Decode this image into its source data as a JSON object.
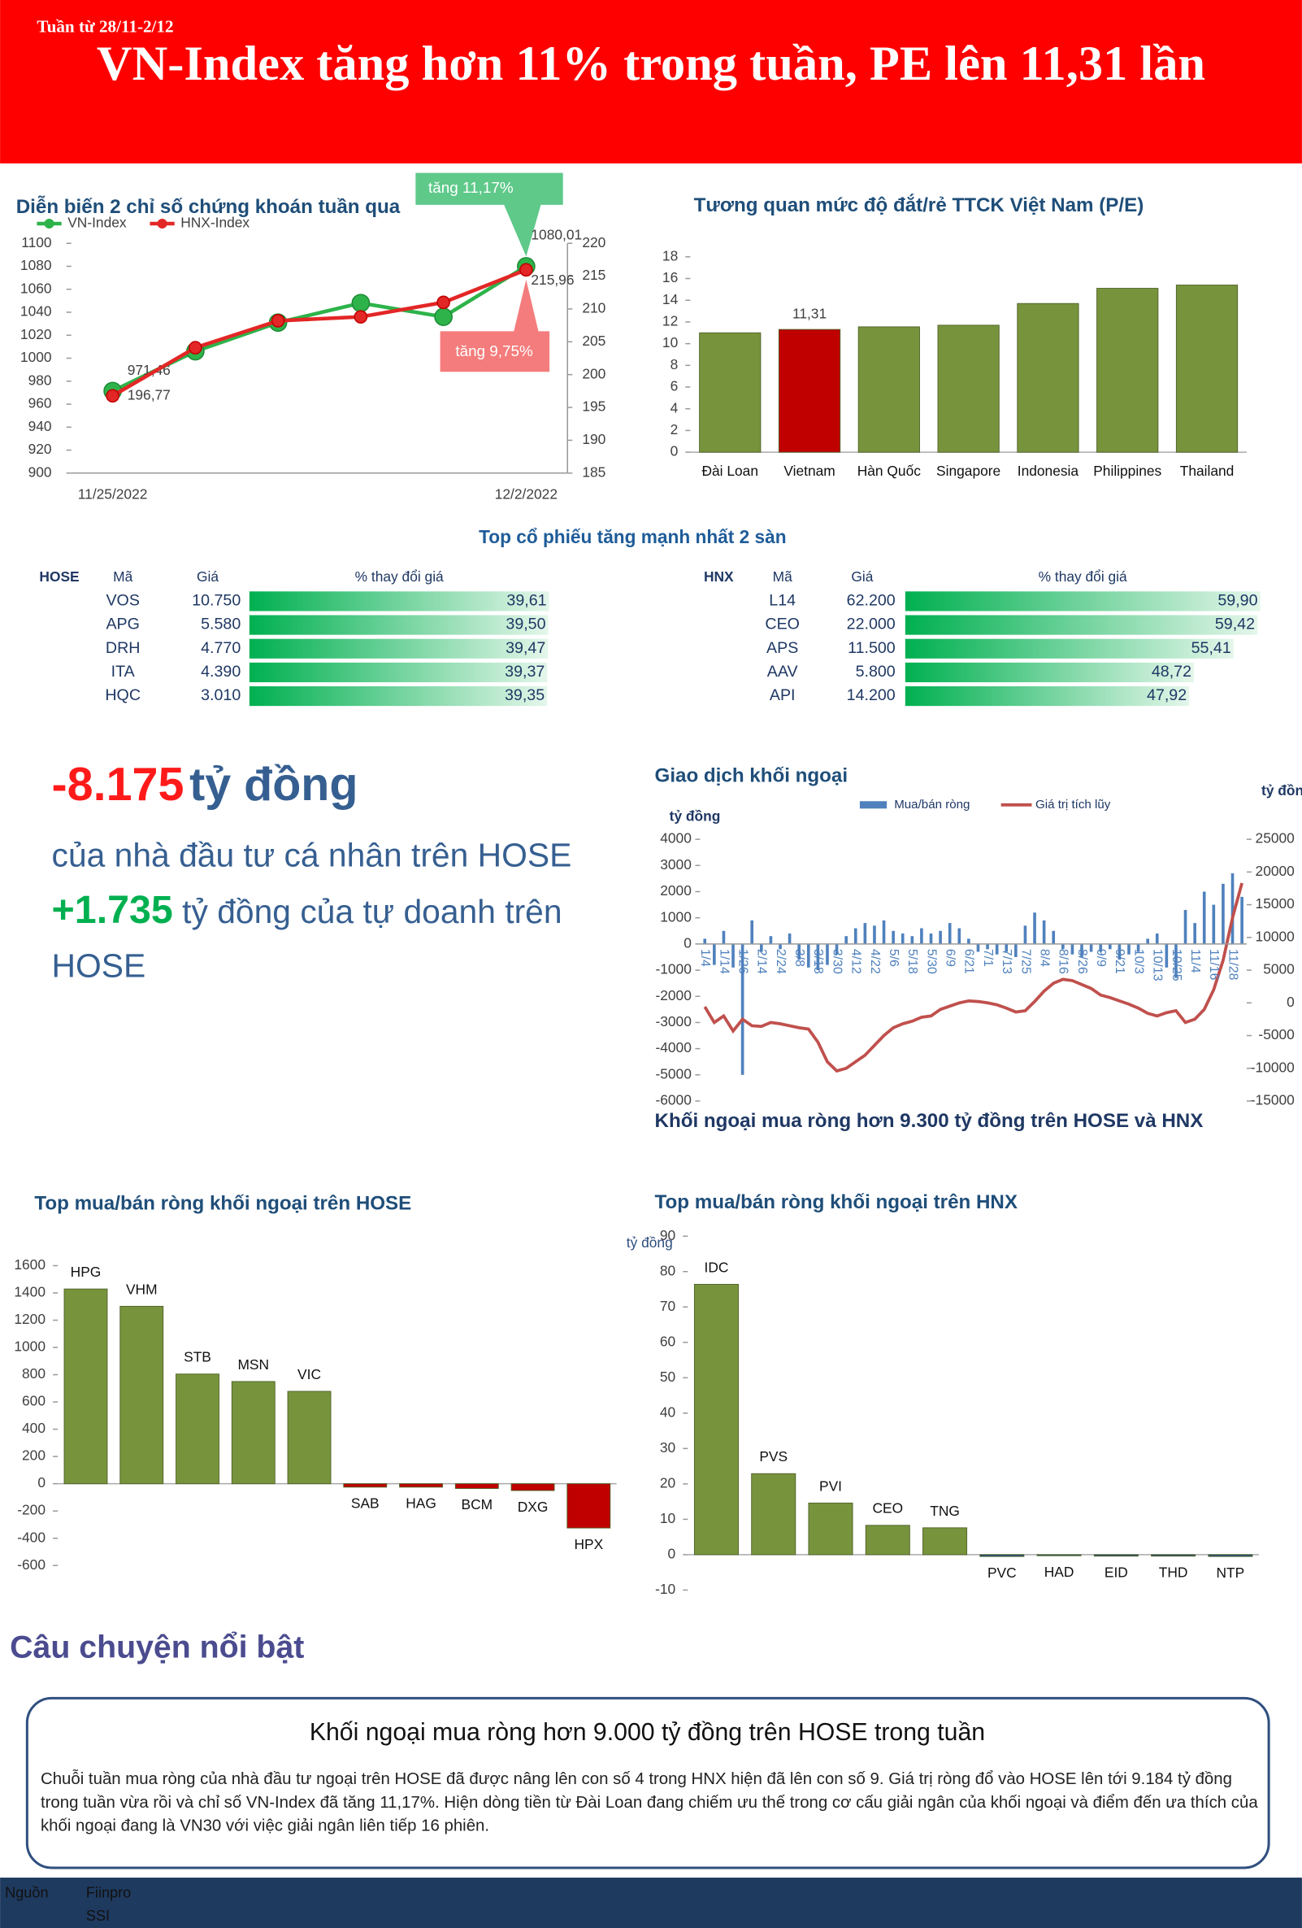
{
  "header": {
    "week": "Tuần từ 28/11-2/12",
    "title": "VN-Index tăng hơn 11% trong tuần, PE lên 11,31 lần"
  },
  "top_gainers_title": "Top cổ phiếu tăng mạnh nhất 2 sàn",
  "chart_data": [
    {
      "type": "line",
      "title": "Diễn biến 2 chỉ số chứng khoán tuần qua",
      "categories": [
        "11/25/2022",
        null,
        null,
        null,
        null,
        "12/2/2022"
      ],
      "series": [
        {
          "name": "VN-Index",
          "color": "#2db34a",
          "values": [
            971.46,
            1006,
            1031,
            1048,
            1036,
            1080.01
          ],
          "value_labels": [
            "971,46",
            null,
            null,
            null,
            null,
            "1080,01"
          ]
        },
        {
          "name": "HNX-Index",
          "color": "#e32626",
          "axis": "y2",
          "values": [
            196.77,
            204.1,
            208.2,
            208.8,
            211,
            215.96
          ],
          "value_labels": [
            "196,77",
            null,
            null,
            null,
            null,
            "215,96"
          ]
        }
      ],
      "ylim": [
        900,
        1100
      ],
      "yticks": [
        900,
        920,
        940,
        960,
        980,
        1000,
        1020,
        1040,
        1060,
        1080,
        1100
      ],
      "y2lim": [
        185,
        220
      ],
      "y2ticks": [
        185,
        190,
        195,
        200,
        205,
        210,
        215,
        220
      ],
      "annotations": [
        {
          "text": "tăng 11,17%",
          "color": "#5fc98a"
        },
        {
          "text": "tăng 9,75%",
          "color": "#f47c7c"
        }
      ]
    },
    {
      "type": "bar",
      "title": "Tương quan mức độ đắt/rẻ TTCK Việt Nam (P/E)",
      "categories": [
        "Đài Loan",
        "Vietnam",
        "Hàn Quốc",
        "Singapore",
        "Indonesia",
        "Philippines",
        "Thailand"
      ],
      "values": [
        11,
        11.31,
        11.55,
        11.7,
        13.7,
        15.1,
        15.4
      ],
      "value_labels": [
        null,
        "11,31",
        null,
        null,
        null,
        null,
        null
      ],
      "colors": [
        "#77933c",
        "#c00000",
        "#77933c",
        "#77933c",
        "#77933c",
        "#77933c",
        "#77933c"
      ],
      "ylim": [
        0,
        18
      ],
      "yticks": [
        0,
        2,
        4,
        6,
        8,
        10,
        12,
        14,
        16,
        18
      ]
    },
    {
      "type": "table-bar",
      "exchange": "HOSE",
      "headers": [
        "Mã",
        "Giá",
        "% thay đổi giá"
      ],
      "categories": [
        "VOS",
        "APG",
        "DRH",
        "ITA",
        "HQC"
      ],
      "prices": [
        "10.750",
        "5.580",
        "4.770",
        "4.390",
        "3.010"
      ],
      "values": [
        39.61,
        39.5,
        39.47,
        39.37,
        39.35
      ],
      "value_labels": [
        "39,61",
        "39,50",
        "39,47",
        "39,37",
        "39,35"
      ]
    },
    {
      "type": "table-bar",
      "exchange": "HNX",
      "headers": [
        "Mã",
        "Giá",
        "% thay đổi giá"
      ],
      "categories": [
        "L14",
        "CEO",
        "APS",
        "AAV",
        "API"
      ],
      "prices": [
        "62.200",
        "22.000",
        "11.500",
        "5.800",
        "14.200"
      ],
      "values": [
        59.9,
        59.42,
        55.41,
        48.72,
        47.92
      ],
      "value_labels": [
        "59,90",
        "59,42",
        "55,41",
        "48,72",
        "47,92"
      ]
    },
    {
      "type": "combo",
      "title": "Giao dịch khối ngoại",
      "caption": "Khối ngoại mua ròng hơn 9.300 tỷ đồng trên HOSE và HNX",
      "y_label": "tỷ đồng",
      "y2_label": "tỷ đồng",
      "categories": [
        "1/4",
        null,
        "1/14",
        null,
        "1/26",
        null,
        "2/14",
        null,
        "2/24",
        null,
        "3/8",
        null,
        "3/18",
        null,
        "3/30",
        null,
        "4/12",
        null,
        "4/22",
        null,
        "5/6",
        null,
        "5/18",
        null,
        "5/30",
        null,
        "6/9",
        null,
        "6/21",
        null,
        "7/1",
        null,
        "7/13",
        null,
        "7/25",
        null,
        "8/4",
        null,
        "8/16",
        null,
        "8/26",
        null,
        "9/9",
        null,
        "9/21",
        null,
        "10/3",
        null,
        "10/13",
        null,
        "10/25",
        null,
        "11/4",
        null,
        "11/16",
        null,
        "11/28",
        null
      ],
      "series": [
        {
          "name": "Mua/bán ròng",
          "color": "#4f81bd",
          "values": [
            200,
            -800,
            500,
            -900,
            -5000,
            900,
            -300,
            300,
            -200,
            400,
            -600,
            -900,
            -1000,
            -800,
            -400,
            300,
            600,
            800,
            700,
            900,
            500,
            400,
            300,
            600,
            400,
            500,
            800,
            600,
            200,
            -300,
            -200,
            -400,
            -300,
            -500,
            700,
            1200,
            900,
            500,
            -200,
            -400,
            -500,
            -300,
            -300,
            -200,
            -600,
            -400,
            -300,
            200,
            400,
            -900,
            -1300,
            1300,
            800,
            2000,
            1500,
            2300,
            2700,
            1800
          ]
        },
        {
          "name": "Giá trị tích lũy",
          "color": "#c0504d",
          "axis": "y2",
          "values": [
            -600,
            -3000,
            -2000,
            -4300,
            -2500,
            -3500,
            -3600,
            -3000,
            -3200,
            -3500,
            -3800,
            -4000,
            -6000,
            -9000,
            -10400,
            -10000,
            -9000,
            -8000,
            -6500,
            -5000,
            -3800,
            -3200,
            -2800,
            -2200,
            -2000,
            -1000,
            -500,
            0,
            300,
            200,
            0,
            -300,
            -800,
            -1400,
            -1200,
            200,
            1800,
            3000,
            3600,
            3400,
            2800,
            2200,
            1200,
            800,
            300,
            -200,
            -800,
            -1600,
            -2000,
            -1500,
            -1200,
            -3000,
            -2500,
            -1000,
            2000,
            6500,
            13000,
            18300
          ]
        }
      ],
      "ylim": [
        -6000,
        4000
      ],
      "yticks": [
        -6000,
        -5000,
        -4000,
        -3000,
        -2000,
        -1000,
        0,
        1000,
        2000,
        3000,
        4000
      ],
      "y2lim": [
        -15000,
        25000
      ],
      "y2ticks": [
        -15000,
        -10000,
        -5000,
        0,
        5000,
        10000,
        15000,
        20000,
        25000
      ]
    },
    {
      "type": "bar",
      "title": "Top mua/bán ròng khối ngoại trên HOSE",
      "categories": [
        "HPG",
        "VHM",
        "STB",
        "MSN",
        "VIC",
        "SAB",
        "HAG",
        "BCM",
        "DXG",
        "HPX"
      ],
      "values": [
        1429,
        1302,
        805,
        750,
        678,
        -25,
        -25,
        -35,
        -50,
        -325
      ],
      "colors": [
        "#77933c",
        "#77933c",
        "#77933c",
        "#77933c",
        "#77933c",
        "#c00000",
        "#c00000",
        "#c00000",
        "#c00000",
        "#c00000"
      ],
      "ylim": [
        -600,
        1600
      ],
      "yticks": [
        -600,
        -400,
        -200,
        0,
        200,
        400,
        600,
        800,
        1000,
        1200,
        1400,
        1600
      ]
    },
    {
      "type": "bar",
      "title": "Top mua/bán ròng khối ngoại trên HNX",
      "y_label": "tỷ đồng",
      "categories": [
        "IDC",
        "PVS",
        "PVI",
        "CEO",
        "TNG",
        "PVC",
        "HAD",
        "EID",
        "THD",
        "NTP"
      ],
      "values": [
        76.4,
        22.9,
        14.6,
        8.3,
        7.6,
        -0.5,
        -0.3,
        -0.4,
        -0.4,
        -0.5
      ],
      "colors": [
        "#77933c",
        "#77933c",
        "#77933c",
        "#77933c",
        "#77933c",
        "#1f497d",
        "#1f497d",
        "#1f497d",
        "#1f497d",
        "#1f497d"
      ],
      "ylim": [
        -10,
        90
      ],
      "yticks": [
        -10,
        0,
        10,
        20,
        30,
        40,
        50,
        60,
        70,
        80,
        90
      ]
    }
  ],
  "stats": {
    "individual_value": "-8.175",
    "individual_unit": "tỷ đồng",
    "individual_text": "của nhà đầu tư cá nhân trên HOSE",
    "proprietary_value": "+1.735",
    "proprietary_text": "tỷ đồng của tự doanh trên HOSE"
  },
  "story": {
    "section": "Câu chuyện nổi bật",
    "title": "Khối ngoại mua ròng hơn 9.000 tỷ đồng trên HOSE trong tuần",
    "body": "Chuỗi tuần mua ròng của nhà đầu tư ngoại trên HOSE đã được nâng lên con số 4 trong HNX hiện đã lên con số 9. Giá trị ròng đổ vào HOSE lên tới 9.184 tỷ đồng trong tuần vừa rồi và chỉ số VN-Index đã tăng 11,17%. Hiện dòng tiền từ Đài Loan đang chiếm ưu thế trong cơ cấu giải ngân của khối ngoại và điểm đến ưa thích của khối ngoại đang là VN30 với việc giải ngân liên tiếp 16 phiên."
  },
  "footer": {
    "label": "Nguồn",
    "sources": [
      "Fiinpro",
      "SSI"
    ]
  }
}
